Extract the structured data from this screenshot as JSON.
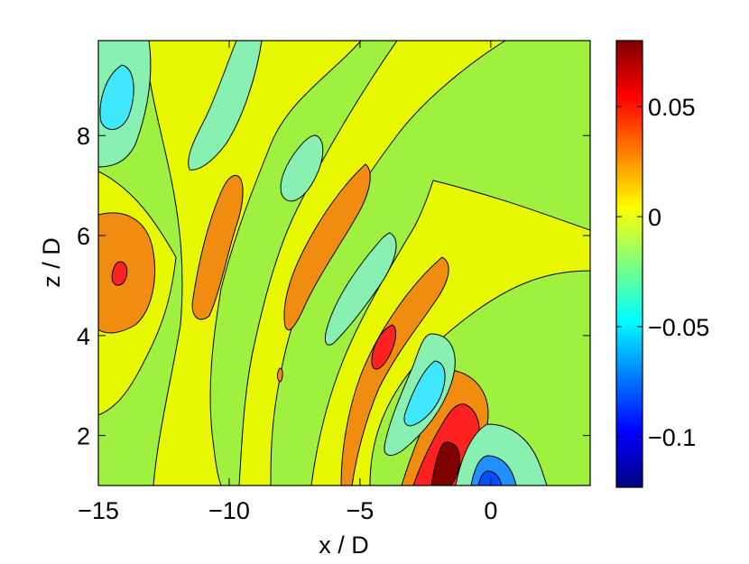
{
  "chart_data": {
    "type": "contour",
    "title": "",
    "xlabel": "x / D",
    "ylabel": "z / D",
    "xlim": [
      -15,
      3.8
    ],
    "ylim": [
      1,
      9.9
    ],
    "clim": [
      -0.123,
      0.08
    ],
    "x_ticks": [
      -15,
      -10,
      -5,
      0
    ],
    "x_tick_labels": [
      "−15",
      "−10",
      "−5",
      "0"
    ],
    "y_ticks": [
      2,
      4,
      6,
      8
    ],
    "y_tick_labels": [
      "2",
      "4",
      "6",
      "8"
    ],
    "colorbar": {
      "colormap": "jet",
      "ticks": [
        0.05,
        0,
        -0.05,
        -0.1
      ],
      "tick_labels": [
        "0.05",
        "0",
        "−0.05",
        "−0.1"
      ],
      "stops": [
        "#00007f",
        "#0000ff",
        "#007fff",
        "#00ffff",
        "#7fff7f",
        "#ffff00",
        "#ff7f00",
        "#ff0000",
        "#7f0000"
      ]
    },
    "contour_level_step": 0.02,
    "level_colors": {
      "-0.10": "#0050ff",
      "-0.08": "#2090ff",
      "-0.06": "#40e8ff",
      "-0.04": "#88f0b0",
      "-0.02": "#a0f040",
      "0.00": "#e8f800",
      "0.02": "#f08c10",
      "0.04": "#ff2020",
      "0.06": "#c00000",
      "0.08": "#7f0000"
    },
    "field_features": [
      {
        "kind": "max",
        "x": -1.4,
        "z": 1.6,
        "value": 0.08
      },
      {
        "kind": "min",
        "x": 0.2,
        "z": 1.0,
        "value": -0.12
      },
      {
        "kind": "min",
        "x": -2.3,
        "z": 2.8,
        "value": -0.06
      },
      {
        "kind": "max",
        "x": -3.9,
        "z": 3.9,
        "value": 0.04
      },
      {
        "kind": "min",
        "x": -5.0,
        "z": 4.3,
        "value": -0.04
      },
      {
        "kind": "max",
        "x": -6.6,
        "z": 5.0,
        "value": 0.02
      },
      {
        "kind": "min",
        "x": -7.1,
        "z": 7.0,
        "value": -0.04
      },
      {
        "kind": "max",
        "x": -9.5,
        "z": 5.0,
        "value": 0.02
      },
      {
        "kind": "max",
        "x": -14.0,
        "z": 5.2,
        "value": 0.04
      },
      {
        "kind": "min",
        "x": -14.2,
        "z": 8.8,
        "value": -0.06
      },
      {
        "kind": "min",
        "x": -9.5,
        "z": 8.7,
        "value": -0.04
      },
      {
        "kind": "max",
        "x": -11.4,
        "z": 8.8,
        "value": 0.02
      }
    ],
    "grid": false,
    "legend": "none"
  }
}
